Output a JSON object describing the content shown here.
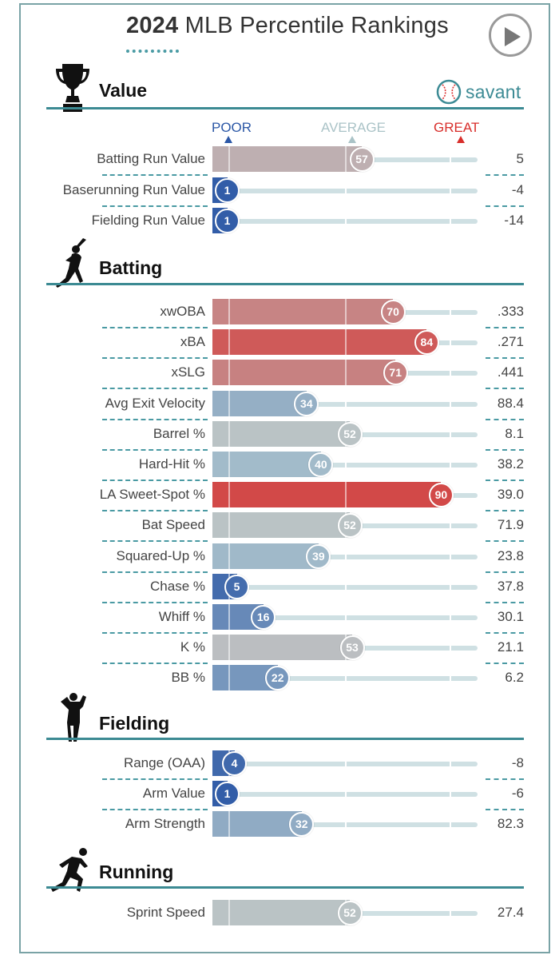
{
  "title": {
    "year": "2024",
    "rest": "MLB Percentile Rankings"
  },
  "brand": {
    "name": "savant"
  },
  "scale": {
    "poor": "POOR",
    "average": "AVERAGE",
    "great": "GREAT"
  },
  "colors": {
    "accent": "#3c8a93",
    "poor": "#2b57a6",
    "great": "#d82e2b",
    "avg": "#b8cdd0"
  },
  "sections": {
    "value": {
      "title": "Value",
      "rows": [
        {
          "label": "Batting Run Value",
          "pct": 57,
          "value": "5"
        },
        {
          "label": "Baserunning Run Value",
          "pct": 1,
          "value": "-4"
        },
        {
          "label": "Fielding Run Value",
          "pct": 1,
          "value": "-14"
        }
      ]
    },
    "batting": {
      "title": "Batting",
      "rows": [
        {
          "label": "xwOBA",
          "pct": 70,
          "value": ".333"
        },
        {
          "label": "xBA",
          "pct": 84,
          "value": ".271"
        },
        {
          "label": "xSLG",
          "pct": 71,
          "value": ".441"
        },
        {
          "label": "Avg Exit Velocity",
          "pct": 34,
          "value": "88.4"
        },
        {
          "label": "Barrel %",
          "pct": 52,
          "value": "8.1"
        },
        {
          "label": "Hard-Hit %",
          "pct": 40,
          "value": "38.2"
        },
        {
          "label": "LA Sweet-Spot %",
          "pct": 90,
          "value": "39.0"
        },
        {
          "label": "Bat Speed",
          "pct": 52,
          "value": "71.9"
        },
        {
          "label": "Squared-Up %",
          "pct": 39,
          "value": "23.8"
        },
        {
          "label": "Chase %",
          "pct": 5,
          "value": "37.8"
        },
        {
          "label": "Whiff %",
          "pct": 16,
          "value": "30.1"
        },
        {
          "label": "K %",
          "pct": 53,
          "value": "21.1"
        },
        {
          "label": "BB %",
          "pct": 22,
          "value": "6.2"
        }
      ]
    },
    "fielding": {
      "title": "Fielding",
      "rows": [
        {
          "label": "Range (OAA)",
          "pct": 4,
          "value": "-8"
        },
        {
          "label": "Arm Value",
          "pct": 1,
          "value": "-6"
        },
        {
          "label": "Arm Strength",
          "pct": 32,
          "value": "82.3"
        }
      ]
    },
    "running": {
      "title": "Running",
      "rows": [
        {
          "label": "Sprint Speed",
          "pct": 52,
          "value": "27.4"
        }
      ]
    }
  }
}
